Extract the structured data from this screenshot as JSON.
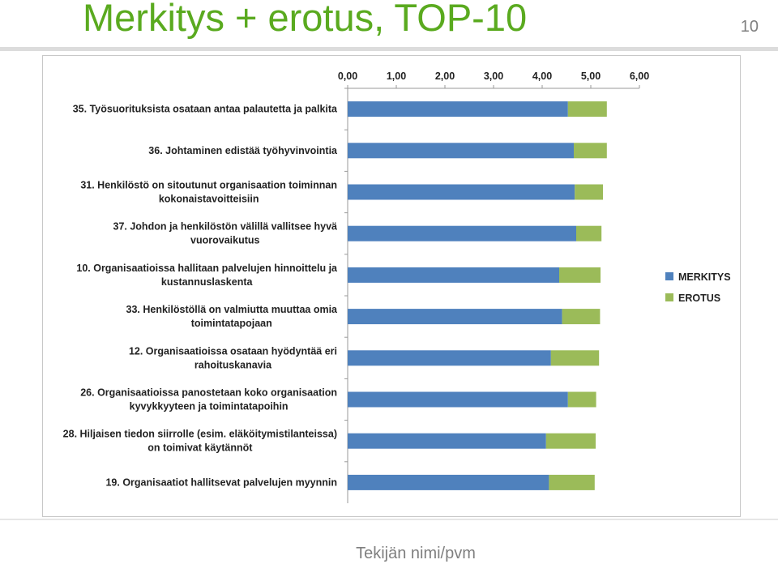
{
  "slide": {
    "title": "Merkitys + erotus, TOP-10",
    "page_number": "10",
    "footer": "Tekijän nimi/pvm"
  },
  "colors": {
    "title": "#5aaa1f",
    "merkitys": "#4f81bd",
    "erotus": "#9bbb59"
  },
  "chart_data": {
    "type": "bar",
    "orientation": "horizontal",
    "stacked": true,
    "categories": [
      [
        "35. Työsuorituksista osataan antaa palautetta ja palkita"
      ],
      [
        "36. Johtaminen edistää työhyvinvointia"
      ],
      [
        "31. Henkilöstö on sitoutunut organisaation toiminnan",
        "kokonaistavoitteisiin"
      ],
      [
        "37. Johdon ja henkilöstön välillä vallitsee hyvä",
        "vuorovaikutus"
      ],
      [
        "10. Organisaatioissa hallitaan palvelujen hinnoittelu ja",
        "kustannuslaskenta"
      ],
      [
        "33. Henkilöstöllä on valmiutta muuttaa omia",
        "toimintatapojaan"
      ],
      [
        "12. Organisaatioissa osataan hyödyntää eri",
        "rahoituskanavia"
      ],
      [
        "26. Organisaatioissa panostetaan koko organisaation",
        "kyvykkyyteen ja toimintatapoihin"
      ],
      [
        "28. Hiljaisen tiedon siirrolle (esim. eläköitymistilanteissa)",
        "on toimivat käytännöt"
      ],
      [
        "19. Organisaatiot hallitsevat palvelujen myynnin"
      ]
    ],
    "series": [
      {
        "name": "MERKITYS",
        "values": [
          4.53,
          4.65,
          4.67,
          4.7,
          4.35,
          4.41,
          4.18,
          4.53,
          4.08,
          4.14
        ]
      },
      {
        "name": "EROTUS",
        "values": [
          0.8,
          0.68,
          0.58,
          0.52,
          0.85,
          0.78,
          0.99,
          0.58,
          1.02,
          0.94
        ]
      }
    ],
    "xlim": [
      0,
      6
    ],
    "xticks": [
      "0,00",
      "1,00",
      "2,00",
      "3,00",
      "4,00",
      "5,00",
      "6,00"
    ],
    "x_axis_position": "top",
    "legend_position": "right",
    "grid": false
  }
}
